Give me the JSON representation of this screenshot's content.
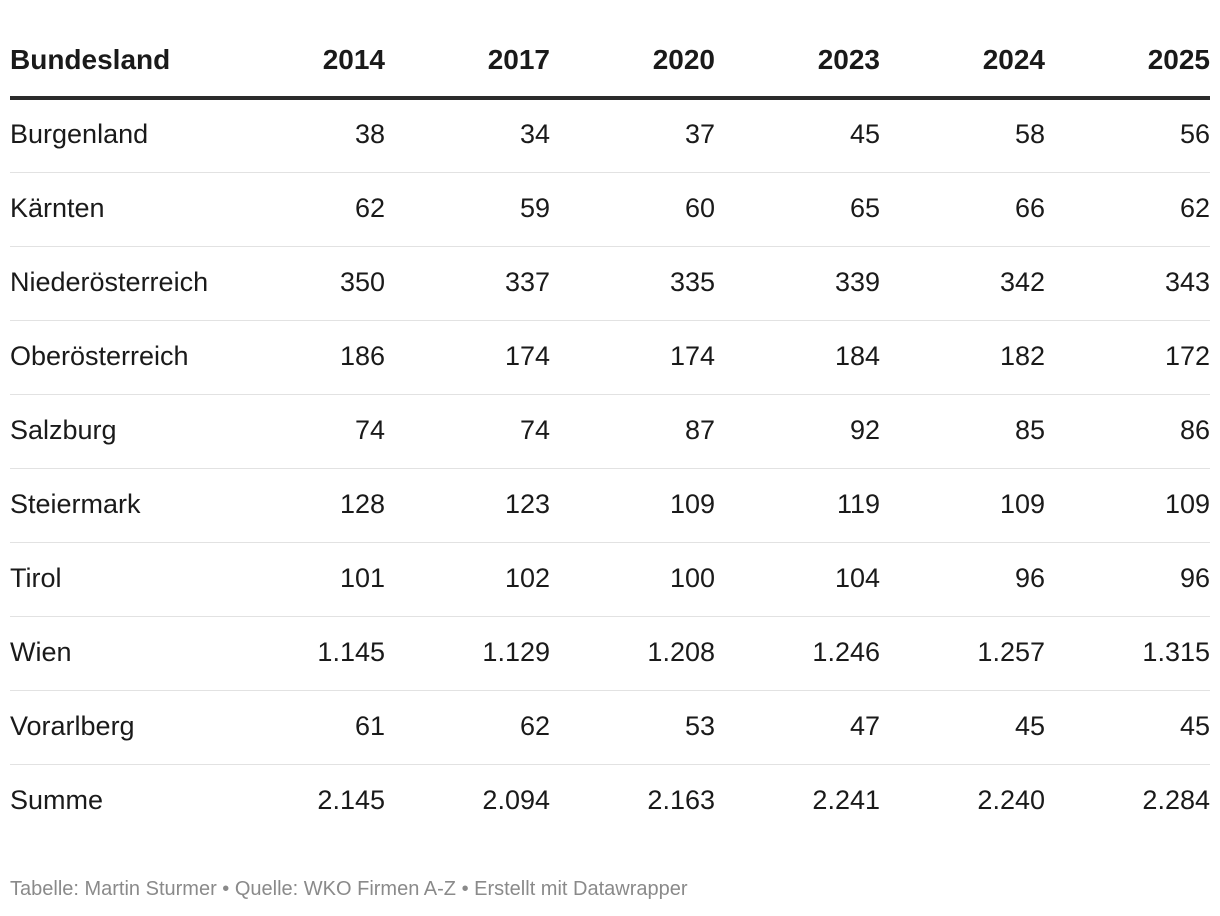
{
  "chart_data": {
    "type": "table",
    "columns": [
      "Bundesland",
      "2014",
      "2017",
      "2020",
      "2023",
      "2024",
      "2025"
    ],
    "rows": [
      [
        "Burgenland",
        "38",
        "34",
        "37",
        "45",
        "58",
        "56"
      ],
      [
        "Kärnten",
        "62",
        "59",
        "60",
        "65",
        "66",
        "62"
      ],
      [
        "Niederösterreich",
        "350",
        "337",
        "335",
        "339",
        "342",
        "343"
      ],
      [
        "Oberösterreich",
        "186",
        "174",
        "174",
        "184",
        "182",
        "172"
      ],
      [
        "Salzburg",
        "74",
        "74",
        "87",
        "92",
        "85",
        "86"
      ],
      [
        "Steiermark",
        "128",
        "123",
        "109",
        "119",
        "109",
        "109"
      ],
      [
        "Tirol",
        "101",
        "102",
        "100",
        "104",
        "96",
        "96"
      ],
      [
        "Wien",
        "1.145",
        "1.129",
        "1.208",
        "1.246",
        "1.257",
        "1.315"
      ],
      [
        "Vorarlberg",
        "61",
        "62",
        "53",
        "47",
        "45",
        "45"
      ],
      [
        "Summe",
        "2.145",
        "2.094",
        "2.163",
        "2.241",
        "2.240",
        "2.284"
      ]
    ]
  },
  "footer": {
    "text": "Tabelle: Martin Sturmer • Quelle: WKO Firmen A-Z • Erstellt mit Datawrapper"
  },
  "colors": {
    "text": "#1a1a1a",
    "header_rule": "#2b2b2b",
    "row_rule": "#e2e2e2",
    "footer_text": "#8a8a8a"
  }
}
